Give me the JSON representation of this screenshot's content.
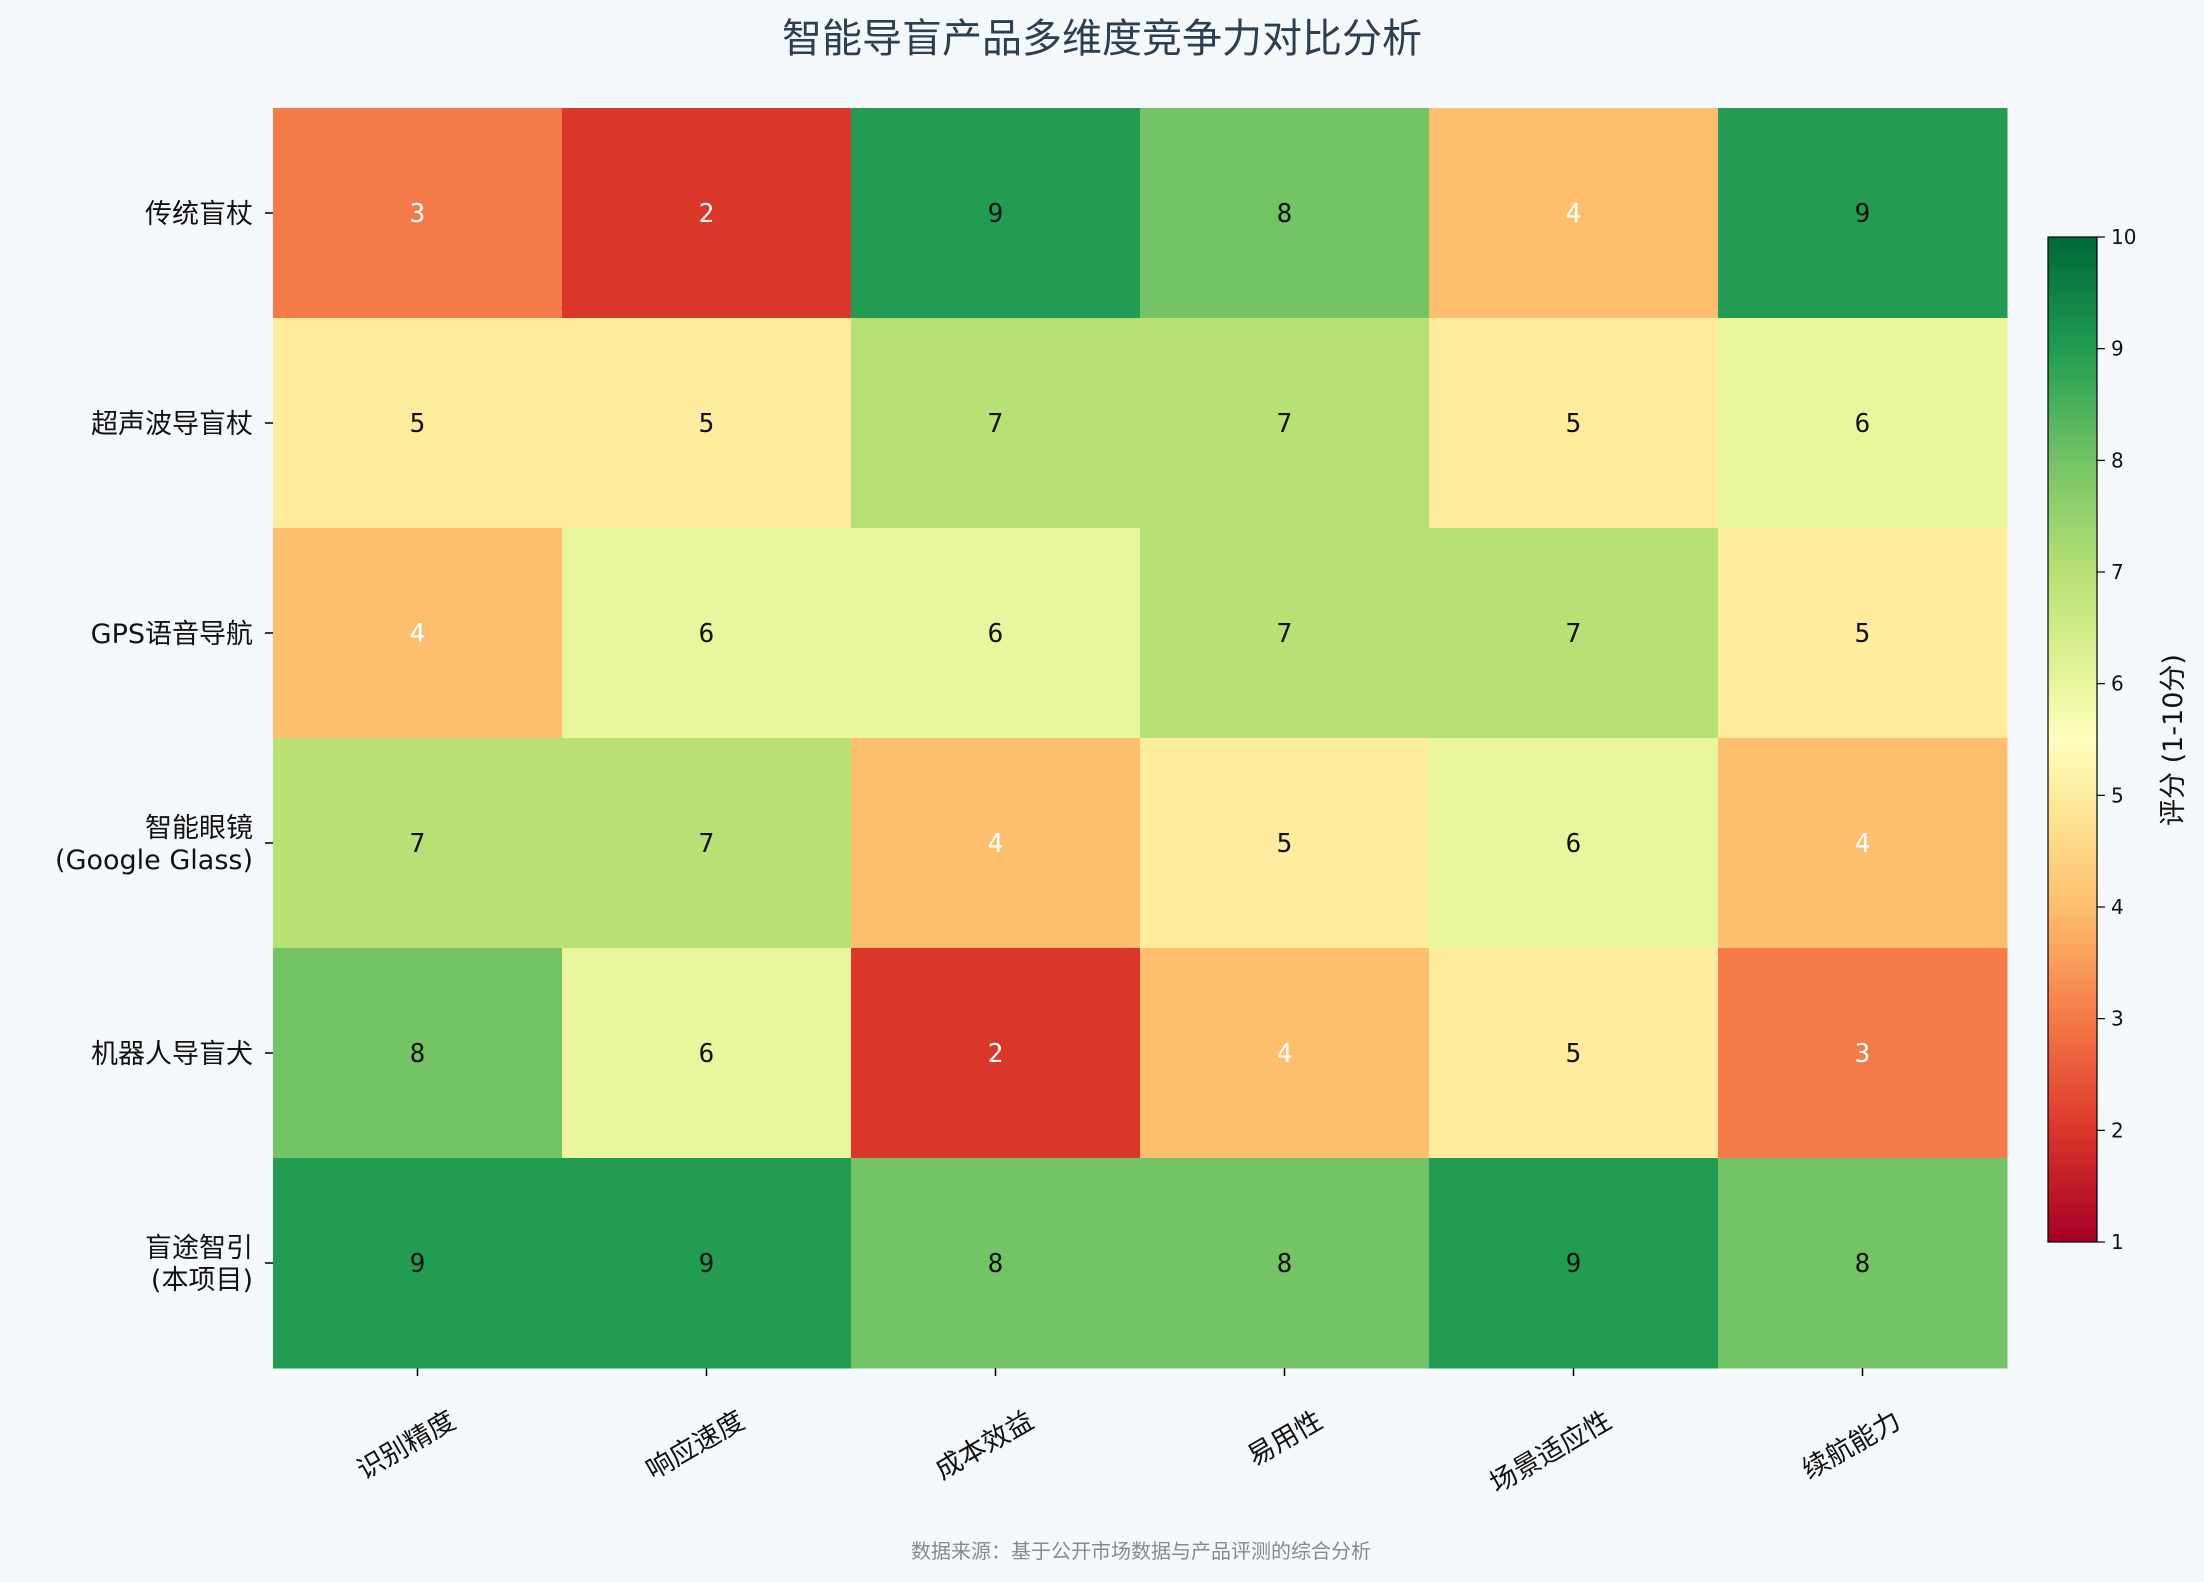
{
  "chart_data": {
    "type": "heatmap",
    "title": "智能导盲产品多维度竞争力对比分析",
    "rows": [
      [
        "传统盲杖"
      ],
      [
        "超声波导盲杖"
      ],
      [
        "GPS语音导航"
      ],
      [
        "智能眼镜",
        "(Google Glass)"
      ],
      [
        "机器人导盲犬"
      ],
      [
        "盲途智引",
        "(本项目)"
      ]
    ],
    "columns": [
      "识别精度",
      "响应速度",
      "成本效益",
      "易用性",
      "场景适应性",
      "续航能力"
    ],
    "values": [
      [
        3,
        2,
        9,
        8,
        4,
        9
      ],
      [
        5,
        5,
        7,
        7,
        5,
        6
      ],
      [
        4,
        6,
        6,
        7,
        7,
        5
      ],
      [
        7,
        7,
        4,
        5,
        6,
        4
      ],
      [
        8,
        6,
        2,
        4,
        5,
        3
      ],
      [
        9,
        9,
        8,
        8,
        9,
        8
      ]
    ],
    "colormap": "RdYlGn",
    "vmin": 1,
    "vmax": 10,
    "colorbar": {
      "label": "评分 (1-10分)",
      "ticks": [
        "1",
        "2",
        "3",
        "4",
        "5",
        "6",
        "7",
        "8",
        "9",
        "10"
      ]
    },
    "colors": {
      "2": "#da362a",
      "3": "#f57a49",
      "4": "#fdbe6e",
      "5": "#feeb9d",
      "6": "#e9f59d",
      "7": "#b7e075",
      "8": "#74c365",
      "9": "#219c52",
      "background": "#f5f8fb",
      "title": "#2c3e50",
      "source": "#7f8c8d"
    },
    "legend": "colorbar-right"
  },
  "footer": {
    "source": "数据来源：基于公开市场数据与产品评测的综合分析"
  }
}
